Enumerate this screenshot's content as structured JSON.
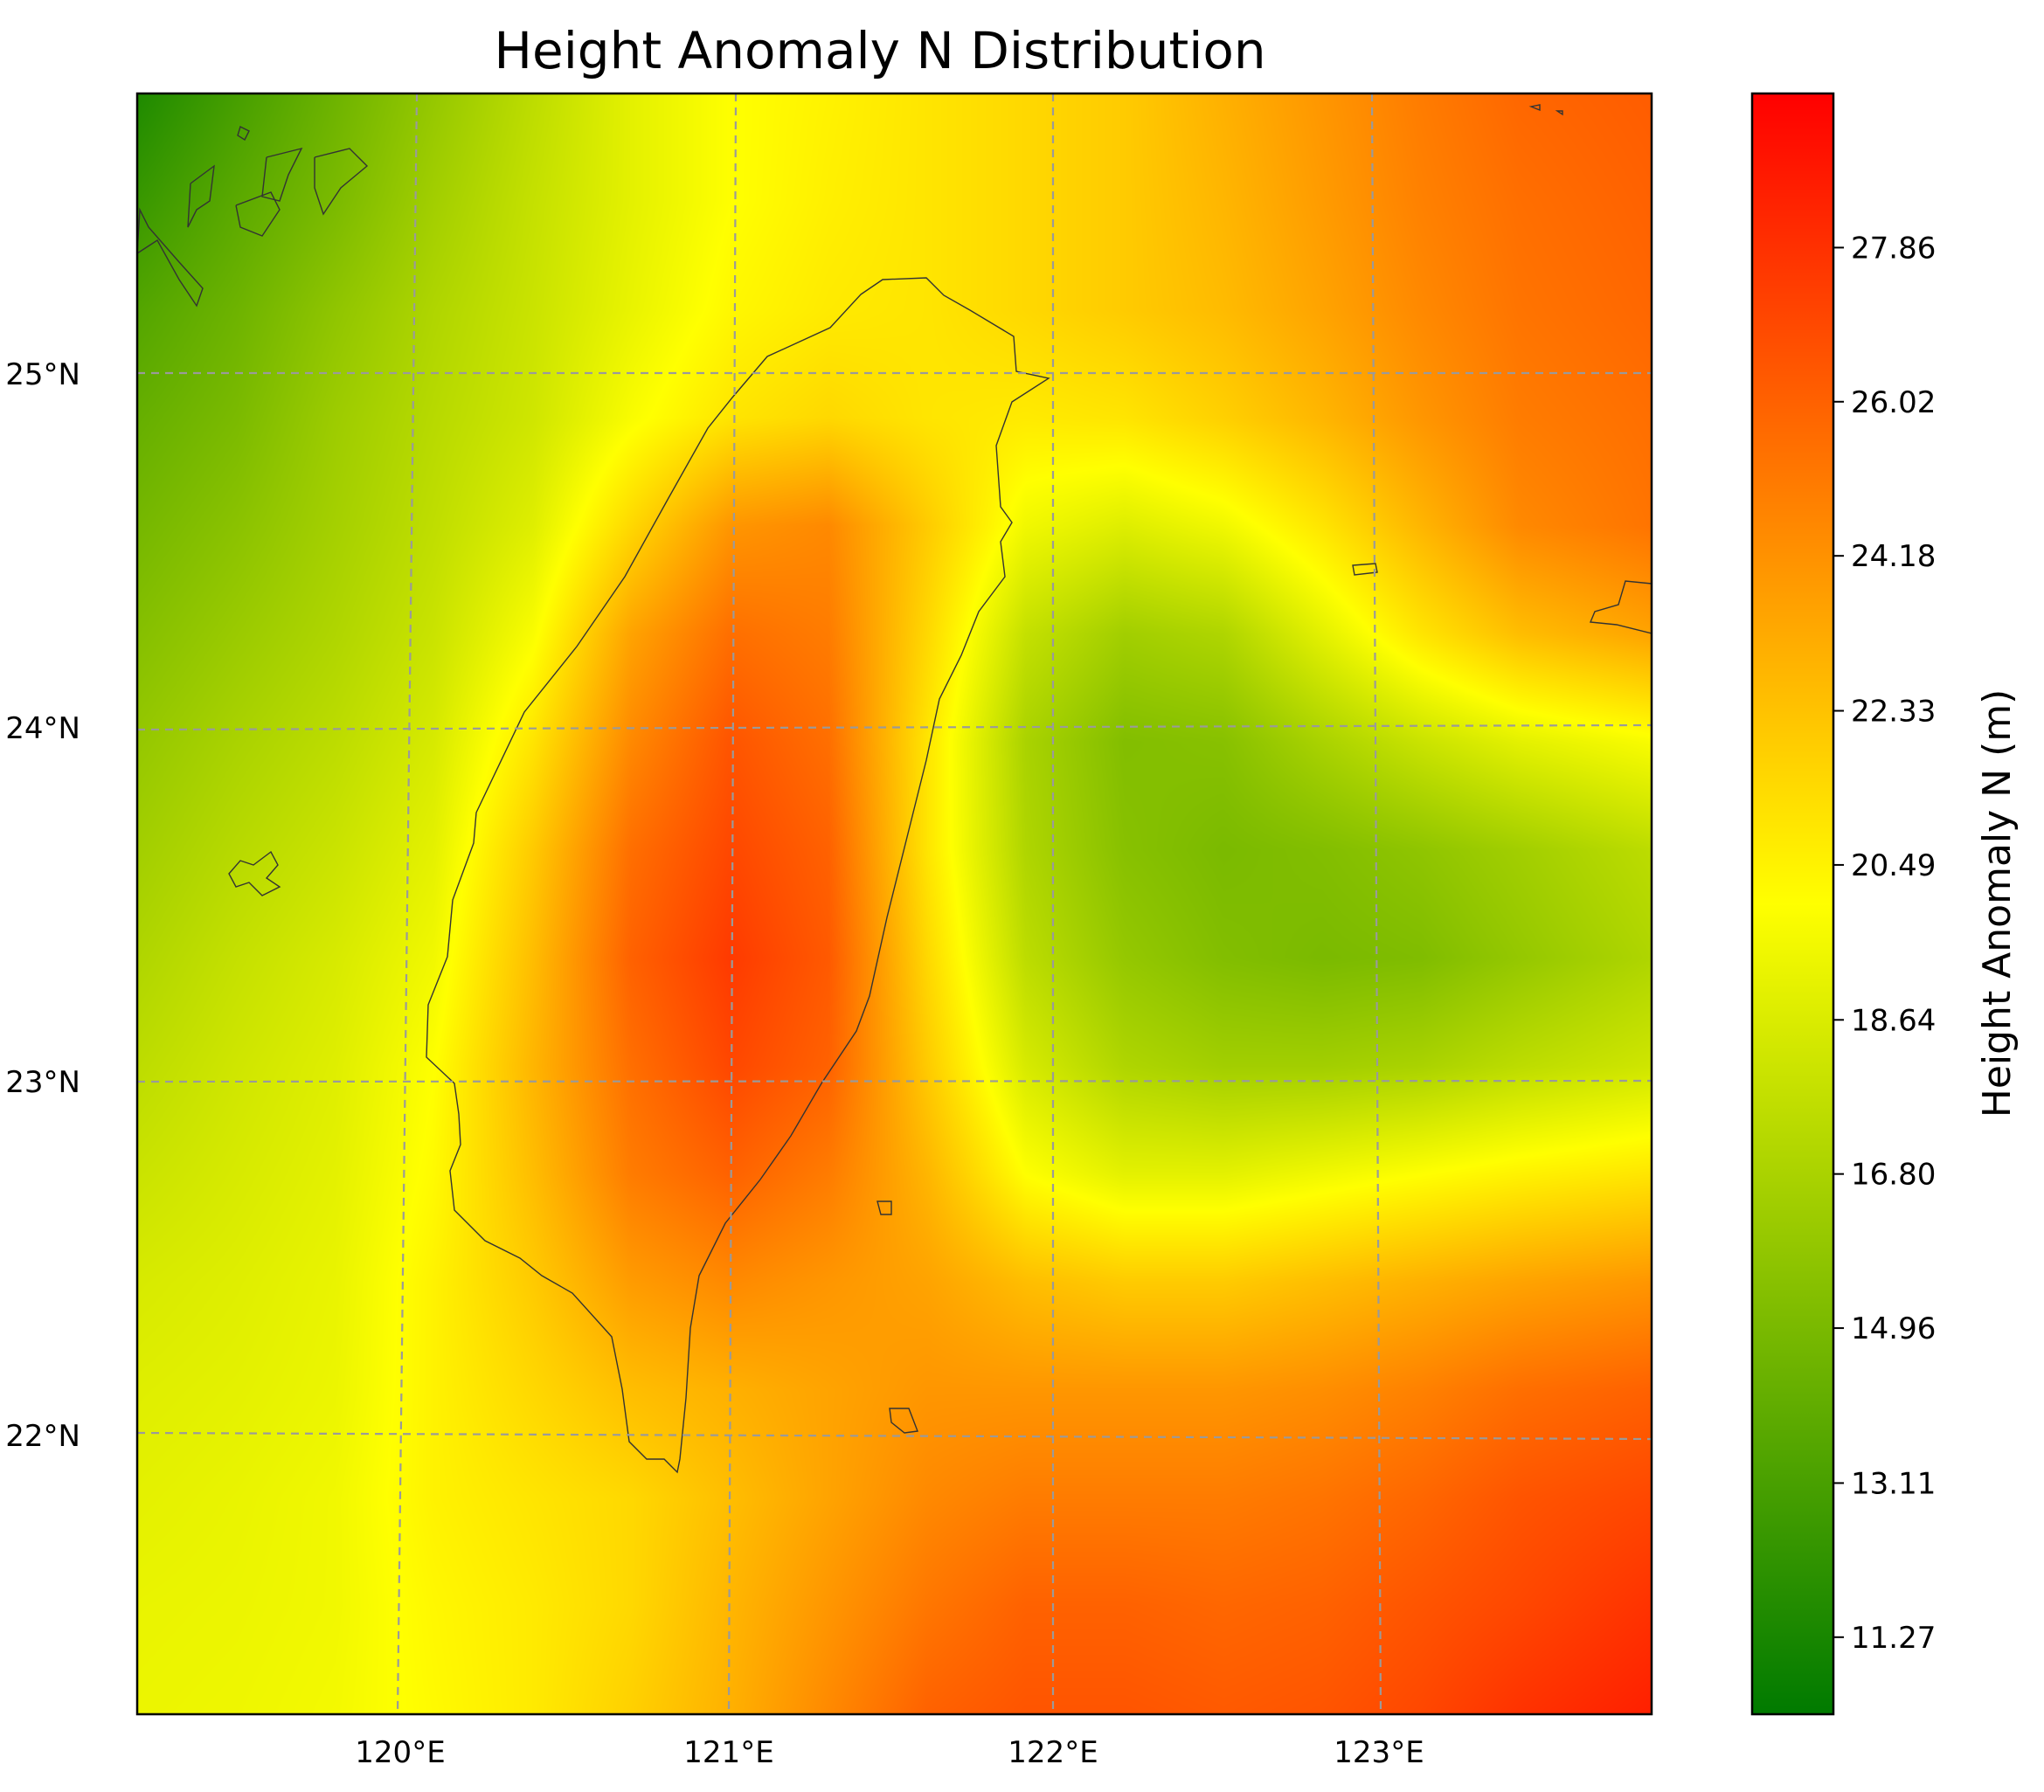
{
  "title": "Height Anomaly N Distribution",
  "colorbar": {
    "label": "Height Anomaly N (m)",
    "min": 10.35,
    "max": 29.7,
    "ticks": [
      "11.27",
      "13.11",
      "14.96",
      "16.80",
      "18.64",
      "20.49",
      "22.33",
      "24.18",
      "26.02",
      "27.86"
    ],
    "colors": [
      "#007a00",
      "#ffff00",
      "#ff0000"
    ]
  },
  "map": {
    "lon_range": [
      119.2,
      123.8
    ],
    "lat_range": [
      21.3,
      25.8
    ],
    "lon_ticks": [
      "120°E",
      "121°E",
      "122°E",
      "123°E"
    ],
    "lat_ticks": [
      "25°N",
      "24°N",
      "23°N",
      "22°N"
    ],
    "gridlines": true
  },
  "chart_data": {
    "type": "heatmap",
    "title": "Height Anomaly N Distribution",
    "xlabel": "",
    "ylabel": "",
    "colorbar_label": "Height Anomaly N (m)",
    "xlim": [
      119.2,
      123.8
    ],
    "ylim": [
      21.3,
      25.8
    ],
    "x": [
      119.2,
      119.5,
      119.8,
      120.1,
      120.4,
      120.7,
      121.0,
      121.3,
      121.6,
      121.9,
      122.2,
      122.5,
      122.8,
      123.1,
      123.4,
      123.8
    ],
    "y": [
      25.8,
      25.5,
      25.2,
      24.9,
      24.6,
      24.3,
      24.0,
      23.7,
      23.4,
      23.1,
      22.8,
      22.5,
      22.2,
      21.9,
      21.6,
      21.3
    ],
    "z": [
      [
        11.5,
        13.0,
        14.5,
        16.0,
        17.5,
        19.0,
        20.0,
        20.5,
        21.0,
        21.5,
        22.0,
        23.0,
        24.0,
        25.0,
        25.8,
        26.2
      ],
      [
        12.5,
        13.8,
        15.0,
        16.5,
        17.8,
        19.0,
        20.0,
        20.6,
        21.0,
        21.5,
        22.0,
        22.8,
        23.8,
        24.8,
        25.5,
        26.0
      ],
      [
        13.5,
        14.5,
        15.8,
        17.0,
        18.0,
        19.2,
        20.3,
        20.8,
        21.0,
        21.5,
        22.0,
        22.6,
        23.5,
        24.5,
        25.3,
        25.8
      ],
      [
        14.2,
        15.0,
        16.3,
        17.3,
        18.2,
        19.8,
        21.0,
        21.5,
        21.0,
        20.8,
        21.0,
        21.8,
        22.8,
        24.0,
        25.0,
        25.5
      ],
      [
        14.8,
        15.6,
        16.6,
        17.6,
        18.8,
        21.5,
        24.0,
        24.5,
        22.0,
        19.5,
        18.8,
        19.5,
        21.0,
        22.8,
        24.5,
        25.3
      ],
      [
        15.4,
        16.2,
        17.0,
        18.0,
        19.8,
        23.5,
        25.5,
        25.0,
        21.5,
        17.8,
        16.5,
        17.0,
        19.0,
        21.0,
        22.5,
        23.5
      ],
      [
        16.0,
        16.8,
        17.5,
        18.5,
        21.0,
        24.5,
        26.5,
        25.5,
        21.0,
        16.8,
        15.3,
        15.5,
        16.8,
        18.0,
        19.0,
        19.8
      ],
      [
        16.5,
        17.3,
        18.0,
        19.0,
        22.0,
        25.5,
        27.0,
        26.0,
        21.0,
        17.0,
        15.5,
        15.0,
        15.3,
        15.8,
        16.5,
        17.5
      ],
      [
        17.0,
        17.8,
        18.5,
        19.5,
        22.5,
        26.0,
        27.5,
        26.3,
        21.5,
        17.5,
        16.0,
        15.3,
        15.0,
        15.2,
        16.0,
        17.0
      ],
      [
        17.5,
        18.2,
        18.8,
        20.0,
        22.8,
        25.5,
        27.0,
        26.0,
        22.0,
        18.5,
        17.0,
        16.5,
        16.5,
        16.8,
        17.5,
        18.2
      ],
      [
        18.0,
        18.5,
        19.0,
        20.2,
        22.5,
        25.0,
        26.0,
        25.0,
        22.8,
        20.0,
        19.0,
        19.0,
        19.5,
        20.0,
        20.5,
        21.0
      ],
      [
        18.5,
        18.8,
        19.2,
        20.5,
        22.0,
        23.8,
        24.5,
        24.0,
        23.5,
        22.5,
        22.0,
        22.0,
        22.5,
        23.0,
        23.5,
        24.0
      ],
      [
        18.8,
        19.0,
        19.3,
        20.5,
        21.5,
        22.5,
        23.0,
        23.5,
        24.0,
        24.0,
        24.0,
        24.0,
        24.3,
        24.8,
        25.5,
        26.0
      ],
      [
        19.0,
        19.2,
        19.5,
        20.5,
        21.0,
        21.5,
        22.5,
        23.5,
        24.5,
        25.0,
        25.0,
        25.0,
        25.3,
        25.8,
        26.5,
        27.0
      ],
      [
        19.2,
        19.3,
        19.5,
        20.3,
        20.8,
        21.5,
        22.8,
        24.0,
        25.2,
        26.0,
        26.0,
        25.8,
        26.0,
        26.5,
        27.0,
        27.8
      ],
      [
        19.3,
        19.4,
        19.6,
        20.2,
        20.8,
        21.8,
        23.0,
        24.5,
        26.0,
        26.5,
        26.5,
        26.3,
        26.5,
        27.0,
        27.8,
        28.5
      ]
    ]
  }
}
